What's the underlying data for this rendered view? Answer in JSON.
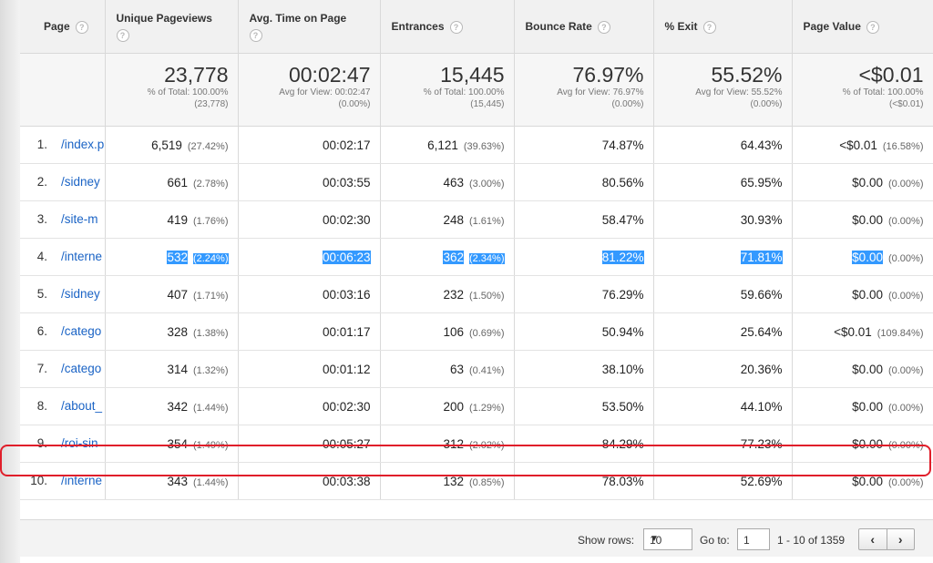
{
  "headers": [
    {
      "label": "Page",
      "help": "?"
    },
    {
      "label": "Unique Pageviews",
      "help": "?"
    },
    {
      "label": "Avg. Time on Page",
      "help": "?"
    },
    {
      "label": "Entrances",
      "help": "?"
    },
    {
      "label": "Bounce Rate",
      "help": "?"
    },
    {
      "label": "% Exit",
      "help": "?"
    },
    {
      "label": "Page Value",
      "help": "?"
    }
  ],
  "totals": [
    {
      "value": "23,778",
      "line1": "% of Total: 100.00%",
      "line2": "(23,778)"
    },
    {
      "value": "00:02:47",
      "line1": "Avg for View: 00:02:47",
      "line2": "(0.00%)"
    },
    {
      "value": "15,445",
      "line1": "% of Total: 100.00%",
      "line2": "(15,445)"
    },
    {
      "value": "76.97%",
      "line1": "Avg for View: 76.97%",
      "line2": "(0.00%)"
    },
    {
      "value": "55.52%",
      "line1": "Avg for View: 55.52%",
      "line2": "(0.00%)"
    },
    {
      "value": "<$0.01",
      "line1": "% of Total: 100.00%",
      "line2": "(<$0.01)"
    }
  ],
  "rows": [
    {
      "idx": "1.",
      "page": "/index.p",
      "pv": "6,519",
      "pvPct": "(27.42%)",
      "time": "00:02:17",
      "ent": "6,121",
      "entPct": "(39.63%)",
      "bounce": "74.87%",
      "exit": "64.43%",
      "val": "<$0.01",
      "valPct": "(16.58%)"
    },
    {
      "idx": "2.",
      "page": "/sidney eijing-n",
      "pv": "661",
      "pvPct": "(2.78%)",
      "time": "00:03:55",
      "ent": "463",
      "entPct": "(3.00%)",
      "bounce": "80.56%",
      "exit": "65.95%",
      "val": "$0.00",
      "valPct": "(0.00%)"
    },
    {
      "idx": "3.",
      "page": "/site-m",
      "pv": "419",
      "pvPct": "(1.76%)",
      "time": "00:02:30",
      "ent": "248",
      "entPct": "(1.61%)",
      "bounce": "58.47%",
      "exit": "30.93%",
      "val": "$0.00",
      "valPct": "(0.00%)"
    },
    {
      "idx": "4.",
      "page": "/interne",
      "pv": "532",
      "pvPct": "(2.24%)",
      "time": "00:06:23",
      "ent": "362",
      "entPct": "(2.34%)",
      "bounce": "81.22%",
      "exit": "71.81%",
      "val": "$0.00",
      "valPct": "(0.00%)"
    },
    {
      "idx": "5.",
      "page": "/sidney eijing-ju",
      "pv": "407",
      "pvPct": "(1.71%)",
      "time": "00:03:16",
      "ent": "232",
      "entPct": "(1.50%)",
      "bounce": "76.29%",
      "exit": "59.66%",
      "val": "$0.00",
      "valPct": "(0.00%)"
    },
    {
      "idx": "6.",
      "page": "/catego",
      "pv": "328",
      "pvPct": "(1.38%)",
      "time": "00:01:17",
      "ent": "106",
      "entPct": "(0.69%)",
      "bounce": "50.94%",
      "exit": "25.64%",
      "val": "<$0.01",
      "valPct": "(109.84%)"
    },
    {
      "idx": "7.",
      "page": "/catego",
      "pv": "314",
      "pvPct": "(1.32%)",
      "time": "00:01:12",
      "ent": "63",
      "entPct": "(0.41%)",
      "bounce": "38.10%",
      "exit": "20.36%",
      "val": "$0.00",
      "valPct": "(0.00%)"
    },
    {
      "idx": "8.",
      "page": "/about_",
      "pv": "342",
      "pvPct": "(1.44%)",
      "time": "00:02:30",
      "ent": "200",
      "entPct": "(1.29%)",
      "bounce": "53.50%",
      "exit": "44.10%",
      "val": "$0.00",
      "valPct": "(0.00%)"
    },
    {
      "idx": "9.",
      "page": "/roi-sin",
      "pv": "354",
      "pvPct": "(1.49%)",
      "time": "00:05:27",
      "ent": "312",
      "entPct": "(2.02%)",
      "bounce": "84.29%",
      "exit": "77.23%",
      "val": "$0.00",
      "valPct": "(0.00%)"
    },
    {
      "idx": "10.",
      "page": "/interne",
      "pv": "343",
      "pvPct": "(1.44%)",
      "time": "00:03:38",
      "ent": "132",
      "entPct": "(0.85%)",
      "bounce": "78.03%",
      "exit": "52.69%",
      "val": "$0.00",
      "valPct": "(0.00%)"
    }
  ],
  "footer": {
    "show_rows_label": "Show rows:",
    "show_rows_value": "10",
    "goto_label": "Go to:",
    "goto_value": "1",
    "range": "1 - 10 of 1359",
    "prev": "‹",
    "next": "›"
  },
  "colors": {
    "highlight": "#3399ff",
    "link": "#1a63c5",
    "circle": "#e01e2a"
  }
}
